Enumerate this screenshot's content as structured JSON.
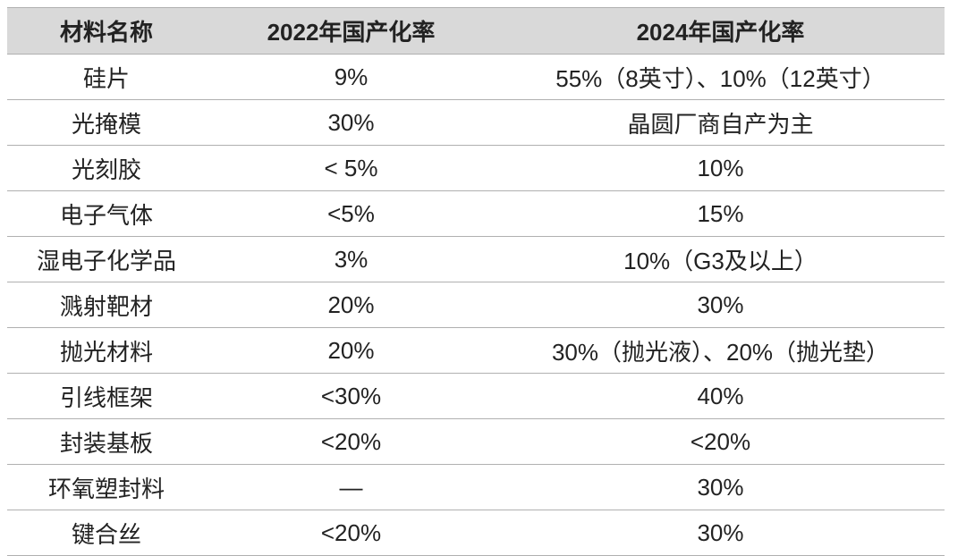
{
  "table": {
    "header": [
      "材料名称",
      "2022年国产化率",
      "2024年国产化率"
    ],
    "rows": [
      [
        "硅片",
        "9%",
        "55%（8英寸）、10%（12英寸）"
      ],
      [
        "光掩模",
        "30%",
        "晶圆厂商自产为主"
      ],
      [
        "光刻胶",
        "< 5%",
        "10%"
      ],
      [
        "电子气体",
        "<5%",
        "15%"
      ],
      [
        "湿电子化学品",
        "3%",
        "10%（G3及以上）"
      ],
      [
        "溅射靶材",
        "20%",
        "30%"
      ],
      [
        "抛光材料",
        "20%",
        "30%（抛光液）、20%（抛光垫）"
      ],
      [
        "引线框架",
        "<30%",
        "40%"
      ],
      [
        "封装基板",
        "<20%",
        "<20%"
      ],
      [
        "环氧塑封料",
        "—",
        "30%"
      ],
      [
        "键合丝",
        "<20%",
        "30%"
      ]
    ]
  }
}
